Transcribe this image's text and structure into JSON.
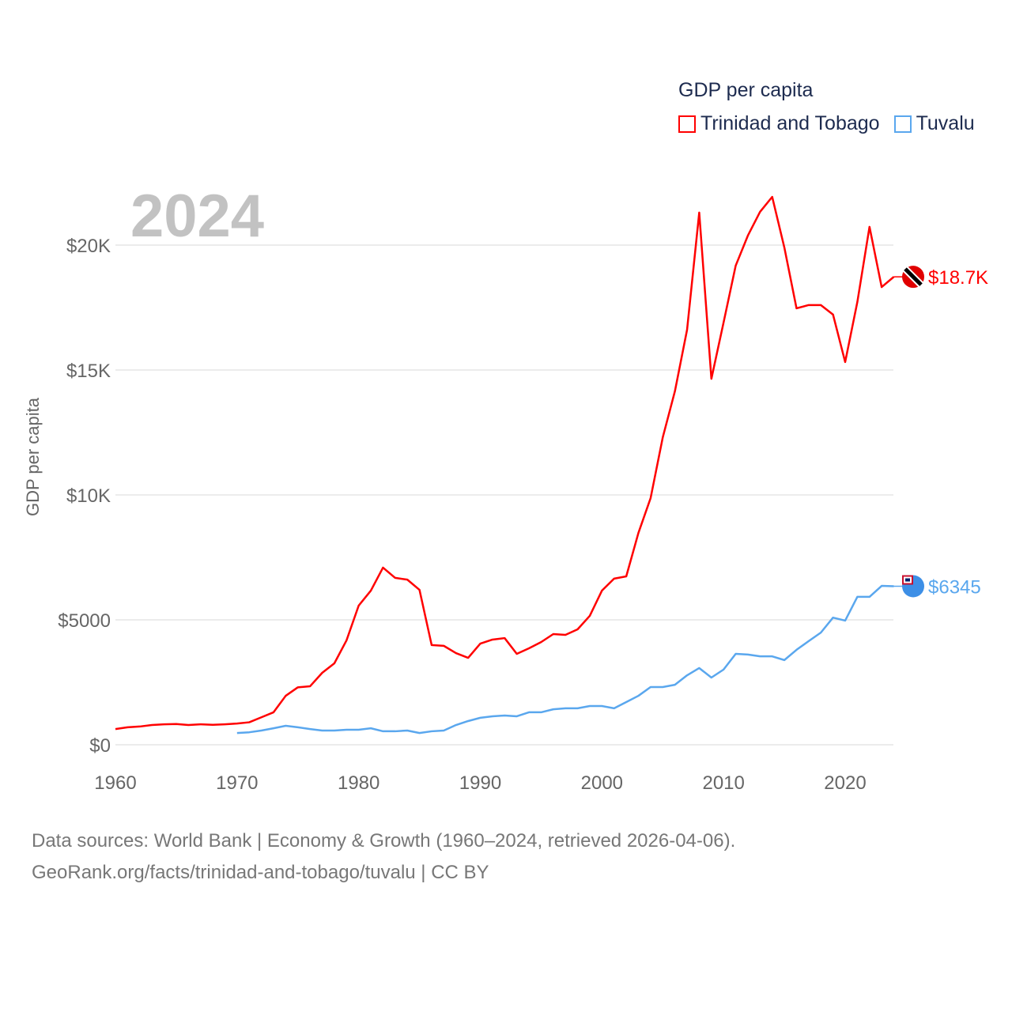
{
  "chart_data": {
    "type": "line",
    "title": "GDP per capita",
    "year_label": "2024",
    "xlabel": "",
    "ylabel": "GDP per capita",
    "xlim": [
      1960,
      2024
    ],
    "ylim": [
      0,
      22000
    ],
    "x_ticks": [
      1960,
      1970,
      1980,
      1990,
      2000,
      2010,
      2020
    ],
    "x_tick_labels": [
      "1960",
      "1970",
      "1980",
      "1990",
      "2000",
      "2010",
      "2020"
    ],
    "y_ticks": [
      0,
      5000,
      10000,
      15000,
      20000
    ],
    "y_tick_labels": [
      "$0",
      "$5000",
      "$10K",
      "$15K",
      "$20K"
    ],
    "grid": true,
    "legend_placement": "top-right",
    "series": [
      {
        "name": "Trinidad and Tobago",
        "color": "#ff0000",
        "end_label": "$18.7K",
        "icon": "trinidad-and-tobago-flag-icon",
        "x_start": 1960,
        "values": [
          630,
          700,
          730,
          790,
          820,
          830,
          790,
          820,
          800,
          820,
          850,
          900,
          1100,
          1300,
          1960,
          2300,
          2340,
          2880,
          3260,
          4180,
          5570,
          6170,
          7090,
          6680,
          6610,
          6200,
          3990,
          3960,
          3670,
          3480,
          4050,
          4210,
          4270,
          3640,
          3860,
          4110,
          4430,
          4400,
          4620,
          5160,
          6170,
          6650,
          6740,
          8480,
          9870,
          12300,
          14150,
          16610,
          21300,
          14650,
          16900,
          19180,
          20380,
          21330,
          21930,
          19900,
          17470,
          17600,
          17600,
          17220,
          15320,
          17720,
          20730,
          18320,
          18730
        ]
      },
      {
        "name": "Tuvalu",
        "color": "#5aa7ee",
        "end_label": "$6345",
        "icon": "tuvalu-flag-icon",
        "x_start": 1970,
        "values": [
          470,
          500,
          570,
          660,
          760,
          700,
          630,
          570,
          570,
          600,
          600,
          660,
          540,
          540,
          570,
          470,
          540,
          570,
          790,
          950,
          1080,
          1140,
          1170,
          1140,
          1300,
          1300,
          1420,
          1460,
          1460,
          1550,
          1550,
          1460,
          1710,
          1960,
          2310,
          2310,
          2400,
          2780,
          3070,
          2690,
          3010,
          3640,
          3610,
          3540,
          3540,
          3390,
          3800,
          4150,
          4490,
          5090,
          4970,
          5920,
          5920,
          6360,
          6345
        ]
      }
    ]
  },
  "footer": {
    "line1": "Data sources: World Bank | Economy & Growth (1960–2024, retrieved 2026-04-06).",
    "line2": "GeoRank.org/facts/trinidad-and-tobago/tuvalu | CC BY"
  }
}
